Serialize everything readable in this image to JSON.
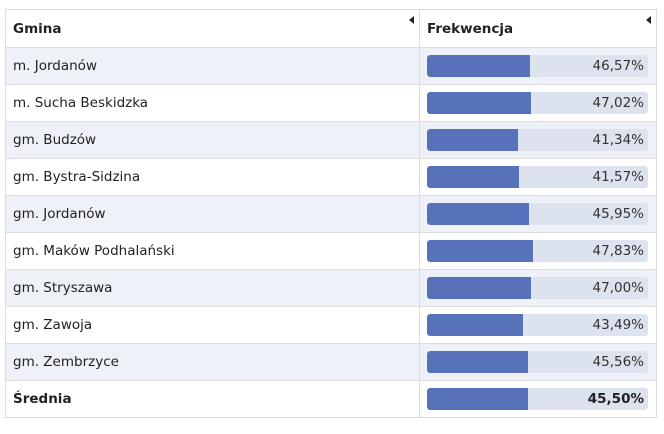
{
  "table": {
    "headers": {
      "name": "Gmina",
      "turnout": "Frekwencja"
    },
    "rows": [
      {
        "name": "m. Jordanów",
        "turnout_label": "46,57%",
        "turnout": 46.57
      },
      {
        "name": "m. Sucha Beskidzka",
        "turnout_label": "47,02%",
        "turnout": 47.02
      },
      {
        "name": "gm. Budzów",
        "turnout_label": "41,34%",
        "turnout": 41.34
      },
      {
        "name": "gm. Bystra-Sidzina",
        "turnout_label": "41,57%",
        "turnout": 41.57
      },
      {
        "name": "gm. Jordanów",
        "turnout_label": "45,95%",
        "turnout": 45.95
      },
      {
        "name": "gm. Maków Podhalański",
        "turnout_label": "47,83%",
        "turnout": 47.83
      },
      {
        "name": "gm. Stryszawa",
        "turnout_label": "47,00%",
        "turnout": 47.0
      },
      {
        "name": "gm. Zawoja",
        "turnout_label": "43,49%",
        "turnout": 43.49
      },
      {
        "name": "gm. Zembrzyce",
        "turnout_label": "45,56%",
        "turnout": 45.56
      }
    ],
    "average": {
      "name": "Średnia",
      "turnout_label": "45,50%",
      "turnout": 45.5
    }
  },
  "colors": {
    "bar_fill": "#5772b8",
    "bar_track": "#dde2ef",
    "row_stripe": "#eef1f8"
  }
}
